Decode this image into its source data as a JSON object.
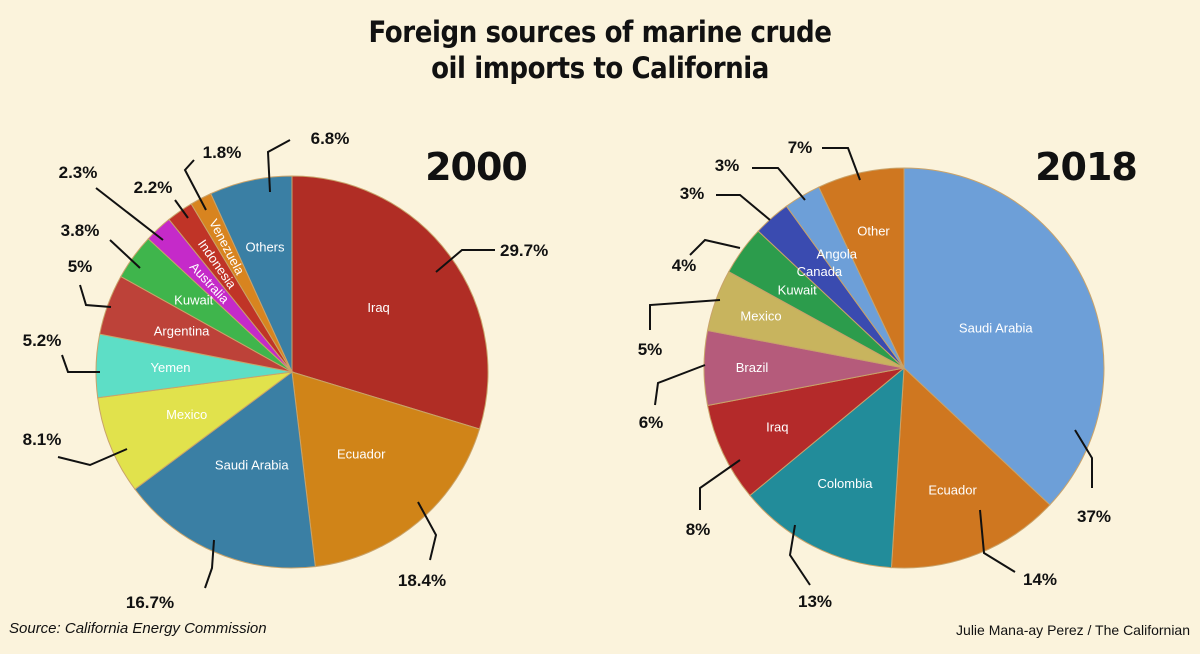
{
  "title": {
    "line1": "Foreign sources of marine crude",
    "line2": "oil imports to California"
  },
  "source": "Source: California Energy Commission",
  "credit": "Julie Mana-ay Perez / The Californian",
  "chart_data": [
    {
      "type": "pie",
      "title": "2000",
      "slices": [
        {
          "label": "Iraq",
          "value": 29.7,
          "pct_label": "29.7%",
          "color": "#b02d25"
        },
        {
          "label": "Ecuador",
          "value": 18.4,
          "pct_label": "18.4%",
          "color": "#d08418"
        },
        {
          "label": "Saudi Arabia",
          "value": 16.7,
          "pct_label": "16.7%",
          "color": "#3a7fa4"
        },
        {
          "label": "Mexico",
          "value": 8.1,
          "pct_label": "8.1%",
          "color": "#e1e24c"
        },
        {
          "label": "Yemen",
          "value": 5.2,
          "pct_label": "5.2%",
          "color": "#5ddec6"
        },
        {
          "label": "Argentina",
          "value": 5.0,
          "pct_label": "5%",
          "color": "#bd4239"
        },
        {
          "label": "Kuwait",
          "value": 3.8,
          "pct_label": "3.8%",
          "color": "#3fb54c"
        },
        {
          "label": "Australia",
          "value": 2.3,
          "pct_label": "2.3%",
          "color": "#c52ac9"
        },
        {
          "label": "Indonesia",
          "value": 2.2,
          "pct_label": "2.2%",
          "color": "#c03427"
        },
        {
          "label": "Venezuela",
          "value": 1.8,
          "pct_label": "1.8%",
          "color": "#d8841f"
        },
        {
          "label": "Others",
          "value": 6.8,
          "pct_label": "6.8%",
          "color": "#3a7fa4"
        }
      ]
    },
    {
      "type": "pie",
      "title": "2018",
      "slices": [
        {
          "label": "Saudi Arabia",
          "value": 37,
          "pct_label": "37%",
          "color": "#6d9fd8"
        },
        {
          "label": "Ecuador",
          "value": 14,
          "pct_label": "14%",
          "color": "#cf7720"
        },
        {
          "label": "Colombia",
          "value": 13,
          "pct_label": "13%",
          "color": "#228c9a"
        },
        {
          "label": "Iraq",
          "value": 8,
          "pct_label": "8%",
          "color": "#b42a2a"
        },
        {
          "label": "Brazil",
          "value": 6,
          "pct_label": "6%",
          "color": "#b55b7b"
        },
        {
          "label": "Mexico",
          "value": 5,
          "pct_label": "5%",
          "color": "#c8b45e"
        },
        {
          "label": "Kuwait",
          "value": 4,
          "pct_label": "4%",
          "color": "#2c9c4c"
        },
        {
          "label": "Canada",
          "value": 3,
          "pct_label": "3%",
          "color": "#3a4bb0"
        },
        {
          "label": "Angola",
          "value": 3,
          "pct_label": "3%",
          "color": "#6d9fd8"
        },
        {
          "label": "Other",
          "value": 7,
          "pct_label": "7%",
          "color": "#cf7720"
        }
      ]
    }
  ]
}
